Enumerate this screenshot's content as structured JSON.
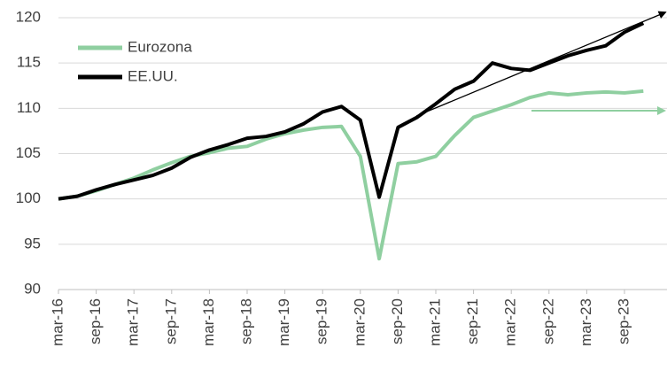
{
  "chart_data": {
    "type": "line",
    "categories": [
      "mar-16",
      null,
      "sep-16",
      null,
      "mar-17",
      null,
      "sep-17",
      null,
      "mar-18",
      null,
      "sep-18",
      null,
      "mar-19",
      null,
      "sep-19",
      null,
      "mar-20",
      null,
      "sep-20",
      null,
      "mar-21",
      null,
      "sep-21",
      null,
      "mar-22",
      null,
      "sep-22",
      null,
      "mar-23",
      null,
      "sep-23",
      null
    ],
    "series": [
      {
        "name": "Eurozona",
        "color": "#8fcfa0",
        "values": [
          100,
          100.3,
          100.9,
          101.6,
          102.3,
          103.2,
          104.0,
          104.7,
          105.1,
          105.6,
          105.8,
          106.6,
          107.2,
          107.6,
          107.9,
          108.0,
          104.7,
          93.4,
          103.9,
          104.1,
          104.7,
          107.0,
          109.0,
          109.7,
          110.4,
          111.2,
          111.7,
          111.5,
          111.7,
          111.8,
          111.7,
          111.9
        ]
      },
      {
        "name": "EE.UU.",
        "color": "#000000",
        "values": [
          100,
          100.3,
          101.0,
          101.6,
          102.1,
          102.6,
          103.4,
          104.6,
          105.4,
          106.0,
          106.7,
          106.9,
          107.4,
          108.3,
          109.6,
          110.2,
          108.7,
          100.2,
          107.9,
          109.0,
          110.5,
          112.1,
          113.0,
          115.0,
          114.4,
          114.2,
          115.0,
          115.8,
          116.4,
          116.9,
          118.4,
          119.4
        ]
      }
    ],
    "ylim": [
      90,
      120
    ],
    "yticks": [
      90,
      95,
      100,
      105,
      110,
      115,
      120
    ],
    "grid": true,
    "legend": "upper-left"
  }
}
